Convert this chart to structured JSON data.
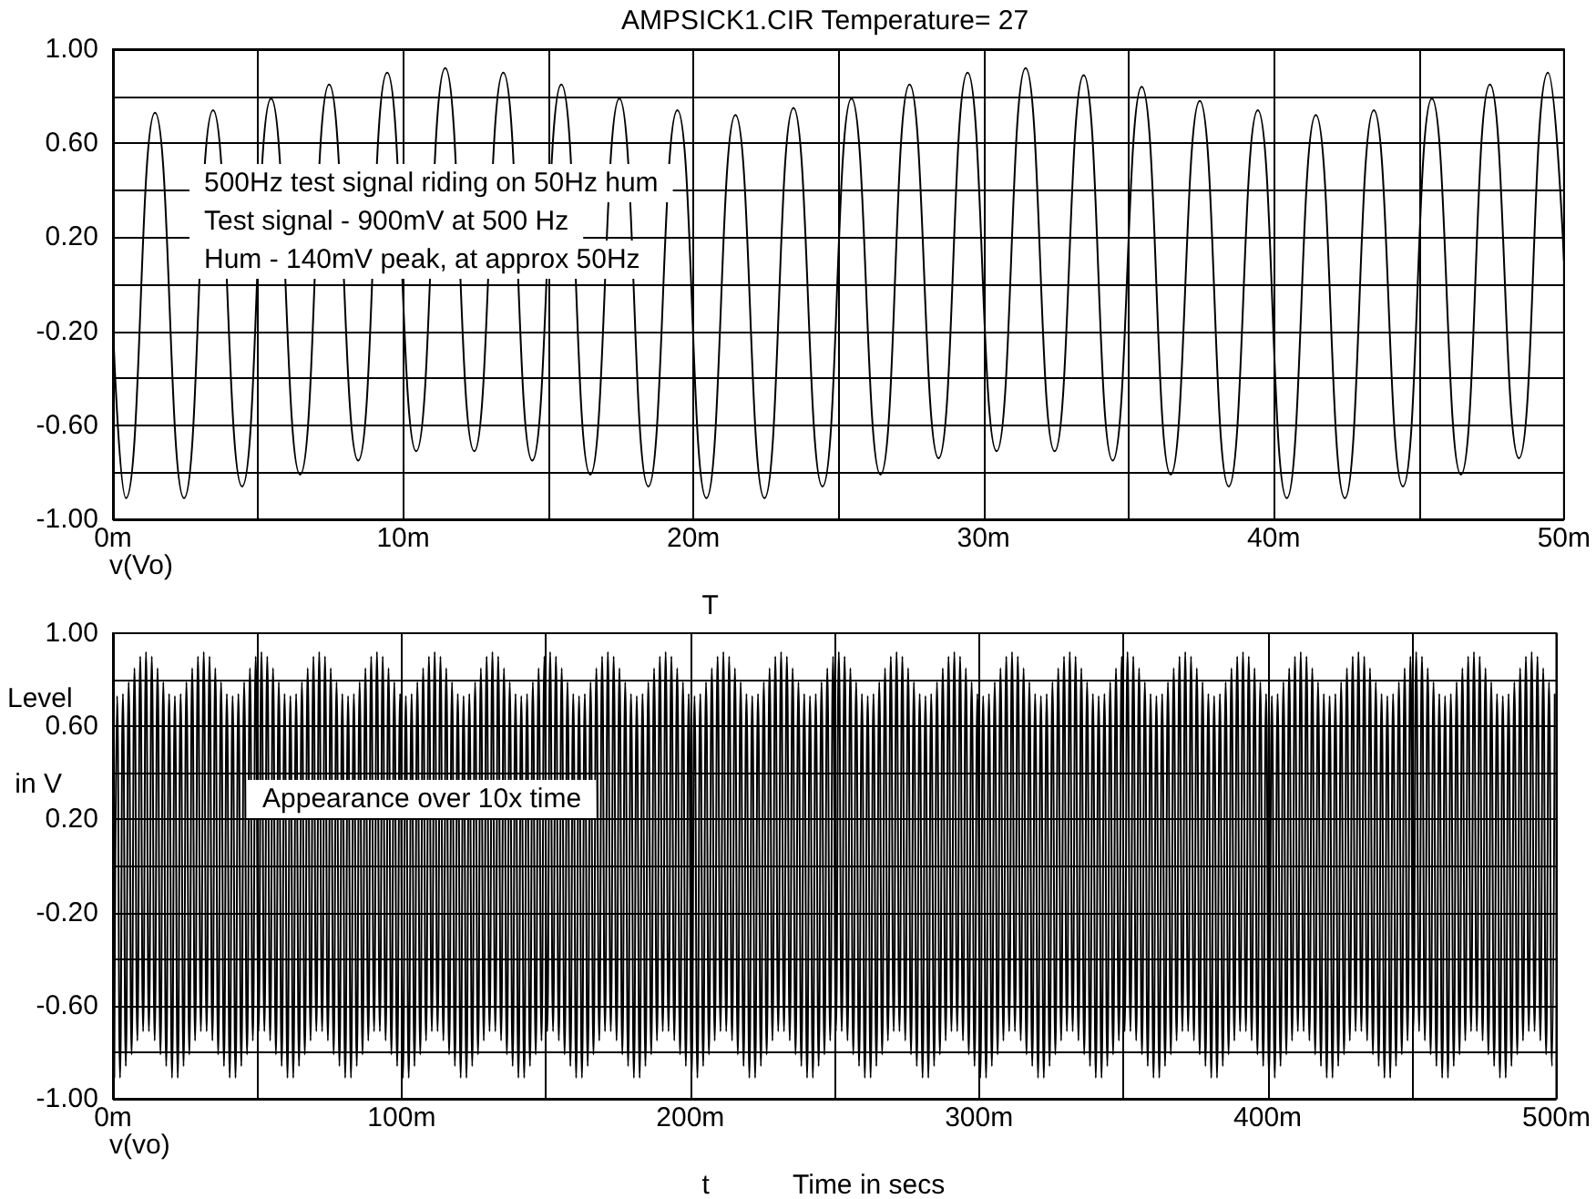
{
  "chart_data": [
    {
      "type": "line",
      "title": "AMPSICK1.CIR Temperature= 27",
      "xlabel": "T",
      "annotations": [
        "500Hz test signal riding on 50Hz hum",
        "Test signal - 900mV at 500 Hz",
        "Hum - 140mV peak, at approx 50Hz"
      ],
      "grid": true,
      "xlim": [
        0,
        50
      ],
      "xticks": [
        {
          "value": 0,
          "label": "0m"
        },
        {
          "value": 5,
          "label": null
        },
        {
          "value": 10,
          "label": "10m"
        },
        {
          "value": 15,
          "label": null
        },
        {
          "value": 20,
          "label": "20m"
        },
        {
          "value": 25,
          "label": null
        },
        {
          "value": 30,
          "label": "30m"
        },
        {
          "value": 35,
          "label": null
        },
        {
          "value": 40,
          "label": "40m"
        },
        {
          "value": 45,
          "label": null
        },
        {
          "value": 50,
          "label": "50m"
        }
      ],
      "ylim": [
        -1,
        1
      ],
      "yticks": [
        {
          "value": -1,
          "label": "-1.00"
        },
        {
          "value": -0.8,
          "label": null
        },
        {
          "value": -0.6,
          "label": "-0.60"
        },
        {
          "value": -0.4,
          "label": null
        },
        {
          "value": -0.2,
          "label": "-0.20"
        },
        {
          "value": 0,
          "label": null
        },
        {
          "value": 0.2,
          "label": "0.20"
        },
        {
          "value": 0.4,
          "label": null
        },
        {
          "value": 0.6,
          "label": "0.60"
        },
        {
          "value": 0.8,
          "label": null
        },
        {
          "value": 1,
          "label": "1.00"
        }
      ],
      "series": [
        {
          "name": "v(Vo)",
          "color": "#000000",
          "x": [
            0,
            0.45,
            1.45,
            2.45,
            3.45,
            4.45,
            5.45,
            6.45,
            7.45,
            8.45,
            9.45,
            10.45,
            11.45,
            12.45,
            13.45,
            14.45,
            15.45,
            16.45,
            17.45,
            18.45,
            19.45,
            20.45,
            21.45,
            22.45,
            23.45,
            24.45,
            25.45,
            26.45,
            27.45,
            28.45,
            29.45,
            30.45,
            31.45,
            32.45,
            33.45,
            34.45,
            35.45,
            36.45,
            37.45,
            38.45,
            39.45,
            40.45,
            41.45,
            42.45,
            43.45,
            44.45,
            45.45,
            46.45,
            47.45,
            48.45,
            49.45,
            50
          ],
          "values": [
            -0.18,
            -0.91,
            0.73,
            -0.91,
            0.74,
            -0.86,
            0.79,
            -0.81,
            0.85,
            -0.75,
            0.9,
            -0.71,
            0.92,
            -0.71,
            0.9,
            -0.75,
            0.85,
            -0.81,
            0.79,
            -0.86,
            0.74,
            -0.91,
            0.72,
            -0.91,
            0.75,
            -0.86,
            0.79,
            -0.81,
            0.85,
            -0.74,
            0.9,
            -0.71,
            0.92,
            -0.71,
            0.89,
            -0.75,
            0.84,
            -0.81,
            0.78,
            -0.86,
            0.74,
            -0.91,
            0.72,
            -0.91,
            0.74,
            -0.86,
            0.79,
            -0.81,
            0.85,
            -0.74,
            0.9,
            0.1
          ]
        }
      ]
    },
    {
      "type": "line",
      "xlabel": "t",
      "ylabel": "Level in V",
      "annotations": [
        "Appearance over 10x time",
        "Time in secs"
      ],
      "grid": true,
      "xlim": [
        0,
        500
      ],
      "xticks": [
        {
          "value": 0,
          "label": "0m"
        },
        {
          "value": 50,
          "label": null
        },
        {
          "value": 100,
          "label": "100m"
        },
        {
          "value": 150,
          "label": null
        },
        {
          "value": 200,
          "label": "200m"
        },
        {
          "value": 250,
          "label": null
        },
        {
          "value": 300,
          "label": "300m"
        },
        {
          "value": 350,
          "label": null
        },
        {
          "value": 400,
          "label": "400m"
        },
        {
          "value": 450,
          "label": null
        },
        {
          "value": 500,
          "label": "500m"
        }
      ],
      "ylim": [
        -1,
        1
      ],
      "yticks": [
        {
          "value": -1,
          "label": "-1.00"
        },
        {
          "value": -0.8,
          "label": null
        },
        {
          "value": -0.6,
          "label": "-0.60"
        },
        {
          "value": -0.4,
          "label": null
        },
        {
          "value": -0.2,
          "label": "-0.20"
        },
        {
          "value": 0,
          "label": null
        },
        {
          "value": 0.2,
          "label": "0.20"
        },
        {
          "value": 0.4,
          "label": null
        },
        {
          "value": 0.6,
          "label": "0.60"
        },
        {
          "value": 0.8,
          "label": null
        },
        {
          "value": 1,
          "label": "1.00"
        }
      ],
      "series": [
        {
          "name": "v(vo)",
          "color": "#000000",
          "x": [
            0.45,
            1.45,
            2.45,
            3.45,
            4.45,
            5.45,
            6.45,
            7.45,
            8.45,
            9.45,
            10.45,
            11.45,
            12.45,
            13.45,
            14.45,
            15.45,
            16.45,
            17.45,
            18.45,
            19.45,
            20.45,
            21.45,
            22.45,
            23.45,
            24.45,
            25.45,
            26.45,
            27.45,
            28.45,
            29.45,
            30.45,
            31.45,
            32.45,
            33.45,
            34.45,
            35.45,
            36.45,
            37.45,
            38.45,
            39.45,
            40.45,
            41.45,
            42.45,
            43.45,
            44.45,
            45.45,
            46.45,
            47.45,
            48.45,
            49.45,
            50.45,
            51.45,
            52.45,
            53.45,
            54.45,
            55.45,
            56.45,
            57.45,
            58.45,
            59.45,
            60.45,
            61.45,
            62.45,
            63.45,
            64.45,
            65.45,
            66.45,
            67.45,
            68.45,
            69.45,
            70.45,
            71.45,
            72.45,
            73.45,
            74.45,
            75.45,
            76.45,
            77.45,
            78.45,
            79.45,
            80.45,
            81.45,
            82.45,
            83.45,
            84.45,
            85.45,
            86.45,
            87.45,
            88.45,
            89.45,
            90.45,
            91.45,
            92.45,
            93.45,
            94.45,
            95.45,
            96.45,
            97.45,
            98.45,
            99.45,
            100.45,
            101.45,
            102.45,
            103.45,
            104.45,
            105.45,
            106.45,
            107.45,
            108.45,
            109.45,
            110.45,
            111.45,
            112.45,
            113.45,
            114.45,
            115.45,
            116.45,
            117.45,
            118.45,
            119.45,
            120.45,
            121.45,
            122.45,
            123.45,
            124.45,
            125.45,
            126.45,
            127.45,
            128.45,
            129.45,
            130.45,
            131.45,
            132.45,
            133.45,
            134.45,
            135.45,
            136.45,
            137.45,
            138.45,
            139.45,
            140.45,
            141.45,
            142.45,
            143.45,
            144.45,
            145.45,
            146.45,
            147.45,
            148.45,
            149.45,
            150.45,
            151.45,
            152.45,
            153.45,
            154.45,
            155.45,
            156.45,
            157.45,
            158.45,
            159.45,
            160.45,
            161.45,
            162.45,
            163.45,
            164.45,
            165.45,
            166.45,
            167.45,
            168.45,
            169.45,
            170.45,
            171.45,
            172.45,
            173.45,
            174.45,
            175.45,
            176.45,
            177.45,
            178.45,
            179.45,
            180.45,
            181.45,
            182.45,
            183.45,
            184.45,
            185.45,
            186.45,
            187.45,
            188.45,
            189.45,
            190.45,
            191.45,
            192.45,
            193.45,
            194.45,
            195.45,
            196.45,
            197.45,
            198.45,
            199.45,
            200.45,
            201.45,
            202.45,
            203.45,
            204.45,
            205.45,
            206.45,
            207.45,
            208.45,
            209.45,
            210.45,
            211.45,
            212.45,
            213.45,
            214.45,
            215.45,
            216.45,
            217.45,
            218.45,
            219.45,
            220.45,
            221.45,
            222.45,
            223.45,
            224.45,
            225.45,
            226.45,
            227.45,
            228.45,
            229.45,
            230.45,
            231.45,
            232.45,
            233.45,
            234.45,
            235.45,
            236.45,
            237.45,
            238.45,
            239.45,
            240.45,
            241.45,
            242.45,
            243.45,
            244.45,
            245.45,
            246.45,
            247.45,
            248.45,
            249.45,
            250.45,
            251.45,
            252.45,
            253.45,
            254.45,
            255.45,
            256.45,
            257.45,
            258.45,
            259.45,
            260.45,
            261.45,
            262.45,
            263.45,
            264.45,
            265.45,
            266.45,
            267.45,
            268.45,
            269.45,
            270.45,
            271.45,
            272.45,
            273.45,
            274.45,
            275.45,
            276.45,
            277.45,
            278.45,
            279.45,
            280.45,
            281.45,
            282.45,
            283.45,
            284.45,
            285.45,
            286.45,
            287.45,
            288.45,
            289.45,
            290.45,
            291.45,
            292.45,
            293.45,
            294.45,
            295.45,
            296.45,
            297.45,
            298.45,
            299.45,
            300.45,
            301.45,
            302.45,
            303.45,
            304.45,
            305.45,
            306.45,
            307.45,
            308.45,
            309.45,
            310.45,
            311.45,
            312.45,
            313.45,
            314.45,
            315.45,
            316.45,
            317.45,
            318.45,
            319.45,
            320.45,
            321.45,
            322.45,
            323.45,
            324.45,
            325.45,
            326.45,
            327.45,
            328.45,
            329.45,
            330.45,
            331.45,
            332.45,
            333.45,
            334.45,
            335.45,
            336.45,
            337.45,
            338.45,
            339.45,
            340.45,
            341.45,
            342.45,
            343.45,
            344.45,
            345.45,
            346.45,
            347.45,
            348.45,
            349.45,
            350.45,
            351.45,
            352.45,
            353.45,
            354.45,
            355.45,
            356.45,
            357.45,
            358.45,
            359.45,
            360.45,
            361.45,
            362.45,
            363.45,
            364.45,
            365.45,
            366.45,
            367.45,
            368.45,
            369.45,
            370.45,
            371.45,
            372.45,
            373.45,
            374.45,
            375.45,
            376.45,
            377.45,
            378.45,
            379.45,
            380.45,
            381.45,
            382.45,
            383.45,
            384.45,
            385.45,
            386.45,
            387.45,
            388.45,
            389.45,
            390.45,
            391.45,
            392.45,
            393.45,
            394.45,
            395.45,
            396.45,
            397.45,
            398.45,
            399.45,
            400.45,
            401.45,
            402.45,
            403.45,
            404.45,
            405.45,
            406.45,
            407.45,
            408.45,
            409.45,
            410.45,
            411.45,
            412.45,
            413.45,
            414.45,
            415.45,
            416.45,
            417.45,
            418.45,
            419.45,
            420.45,
            421.45,
            422.45,
            423.45,
            424.45,
            425.45,
            426.45,
            427.45,
            428.45,
            429.45,
            430.45,
            431.45,
            432.45,
            433.45,
            434.45,
            435.45,
            436.45,
            437.45,
            438.45,
            439.45,
            440.45,
            441.45,
            442.45,
            443.45,
            444.45,
            445.45,
            446.45,
            447.45,
            448.45,
            449.45,
            450.45,
            451.45,
            452.45,
            453.45,
            454.45,
            455.45,
            456.45,
            457.45,
            458.45,
            459.45,
            460.45,
            461.45,
            462.45,
            463.45,
            464.45,
            465.45,
            466.45,
            467.45,
            468.45,
            469.45,
            470.45,
            471.45,
            472.45,
            473.45,
            474.45,
            475.45,
            476.45,
            477.45,
            478.45,
            479.45,
            480.45,
            481.45,
            482.45,
            483.45,
            484.45,
            485.45,
            486.45,
            487.45,
            488.45,
            489.45,
            490.45,
            491.45,
            492.45,
            493.45,
            494.45,
            495.45,
            496.45,
            497.45,
            498.45,
            499.45
          ],
          "values": [
            -0.91,
            0.73,
            -0.91,
            0.74,
            -0.86,
            0.79,
            -0.81,
            0.85,
            -0.75,
            0.9,
            -0.71,
            0.92,
            -0.71,
            0.9,
            -0.75,
            0.85,
            -0.81,
            0.79,
            -0.86,
            0.74,
            -0.91,
            0.73,
            -0.91,
            0.74,
            -0.86,
            0.79,
            -0.81,
            0.85,
            -0.75,
            0.9,
            -0.71,
            0.92,
            -0.71,
            0.9,
            -0.75,
            0.85,
            -0.81,
            0.79,
            -0.86,
            0.74,
            -0.91,
            0.73,
            -0.91,
            0.74,
            -0.86,
            0.79,
            -0.81,
            0.85,
            -0.75,
            0.9,
            -0.71,
            0.92,
            -0.71,
            0.9,
            -0.75,
            0.85,
            -0.81,
            0.79,
            -0.86,
            0.74,
            -0.91,
            0.73,
            -0.91,
            0.74,
            -0.86,
            0.79,
            -0.81,
            0.85,
            -0.75,
            0.9,
            -0.71,
            0.92,
            -0.71,
            0.9,
            -0.75,
            0.85,
            -0.81,
            0.79,
            -0.86,
            0.74,
            -0.91,
            0.73,
            -0.91,
            0.74,
            -0.86,
            0.79,
            -0.81,
            0.85,
            -0.75,
            0.9,
            -0.71,
            0.92,
            -0.71,
            0.9,
            -0.75,
            0.85,
            -0.81,
            0.79,
            -0.86,
            0.74,
            -0.91,
            0.73,
            -0.91,
            0.74,
            -0.86,
            0.79,
            -0.81,
            0.85,
            -0.75,
            0.9,
            -0.71,
            0.92,
            -0.71,
            0.9,
            -0.75,
            0.85,
            -0.81,
            0.79,
            -0.86,
            0.74,
            -0.91,
            0.73,
            -0.91,
            0.74,
            -0.86,
            0.79,
            -0.81,
            0.85,
            -0.75,
            0.9,
            -0.71,
            0.92,
            -0.71,
            0.9,
            -0.75,
            0.85,
            -0.81,
            0.79,
            -0.86,
            0.74,
            -0.91,
            0.73,
            -0.91,
            0.74,
            -0.86,
            0.79,
            -0.81,
            0.85,
            -0.75,
            0.9,
            -0.71,
            0.92,
            -0.71,
            0.9,
            -0.75,
            0.85,
            -0.81,
            0.79,
            -0.86,
            0.74,
            -0.91,
            0.73,
            -0.91,
            0.74,
            -0.86,
            0.79,
            -0.81,
            0.85,
            -0.75,
            0.9,
            -0.71,
            0.92,
            -0.71,
            0.9,
            -0.75,
            0.85,
            -0.81,
            0.79,
            -0.86,
            0.74,
            -0.91,
            0.73,
            -0.91,
            0.74,
            -0.86,
            0.79,
            -0.81,
            0.85,
            -0.75,
            0.9,
            -0.71,
            0.92,
            -0.71,
            0.9,
            -0.75,
            0.85,
            -0.81,
            0.79,
            -0.86,
            0.74,
            -0.91,
            0.73,
            -0.91,
            0.74,
            -0.86,
            0.79,
            -0.81,
            0.85,
            -0.75,
            0.9,
            -0.71,
            0.92,
            -0.71,
            0.9,
            -0.75,
            0.85,
            -0.81,
            0.79,
            -0.86,
            0.74,
            -0.91,
            0.73,
            -0.91,
            0.74,
            -0.86,
            0.79,
            -0.81,
            0.85,
            -0.75,
            0.9,
            -0.71,
            0.92,
            -0.71,
            0.9,
            -0.75,
            0.85,
            -0.81,
            0.79,
            -0.86,
            0.74,
            -0.91,
            0.73,
            -0.91,
            0.74,
            -0.86,
            0.79,
            -0.81,
            0.85,
            -0.75,
            0.9,
            -0.71,
            0.92,
            -0.71,
            0.9,
            -0.75,
            0.85,
            -0.81,
            0.79,
            -0.86,
            0.74,
            -0.91,
            0.73,
            -0.91,
            0.74,
            -0.86,
            0.79,
            -0.81,
            0.85,
            -0.75,
            0.9,
            -0.71,
            0.92,
            -0.71,
            0.9,
            -0.75,
            0.85,
            -0.81,
            0.79,
            -0.86,
            0.74,
            -0.91,
            0.73,
            -0.91,
            0.74,
            -0.86,
            0.79,
            -0.81,
            0.85,
            -0.75,
            0.9,
            -0.71,
            0.92,
            -0.71,
            0.9,
            -0.75,
            0.85,
            -0.81,
            0.79,
            -0.86,
            0.74,
            -0.91,
            0.73,
            -0.91,
            0.74,
            -0.86,
            0.79,
            -0.81,
            0.85,
            -0.75,
            0.9,
            -0.71,
            0.92,
            -0.71,
            0.9,
            -0.75,
            0.85,
            -0.81,
            0.79,
            -0.86,
            0.74,
            -0.91,
            0.73,
            -0.91,
            0.74,
            -0.86,
            0.79,
            -0.81,
            0.85,
            -0.75,
            0.9,
            -0.71,
            0.92,
            -0.71,
            0.9,
            -0.75,
            0.85,
            -0.81,
            0.79,
            -0.86,
            0.74,
            -0.91,
            0.73,
            -0.91,
            0.74,
            -0.86,
            0.79,
            -0.81,
            0.85,
            -0.75,
            0.9,
            -0.71,
            0.92,
            -0.71,
            0.9,
            -0.75,
            0.85,
            -0.81,
            0.79,
            -0.86,
            0.74,
            -0.91,
            0.73,
            -0.91,
            0.74,
            -0.86,
            0.79,
            -0.81,
            0.85,
            -0.75,
            0.9,
            -0.71,
            0.92,
            -0.71,
            0.9,
            -0.75,
            0.85,
            -0.81,
            0.79,
            -0.86,
            0.74,
            -0.91,
            0.73,
            -0.91,
            0.74,
            -0.86,
            0.79,
            -0.81,
            0.85,
            -0.75,
            0.9,
            -0.71,
            0.92,
            -0.71,
            0.9,
            -0.75,
            0.85,
            -0.81,
            0.79,
            -0.86,
            0.74,
            -0.91,
            0.73,
            -0.91,
            0.74,
            -0.86,
            0.79,
            -0.81,
            0.85,
            -0.75,
            0.9,
            -0.71,
            0.92,
            -0.71,
            0.9,
            -0.75,
            0.85,
            -0.81,
            0.79,
            -0.86,
            0.74,
            -0.91,
            0.73,
            -0.91,
            0.74,
            -0.86,
            0.79,
            -0.81,
            0.85,
            -0.75,
            0.9,
            -0.71,
            0.92,
            -0.71,
            0.9,
            -0.75,
            0.85,
            -0.81,
            0.79,
            -0.86,
            0.74,
            -0.91,
            0.73,
            -0.91,
            0.74,
            -0.86,
            0.79,
            -0.81,
            0.85,
            -0.75,
            0.9,
            -0.71,
            0.92,
            -0.71,
            0.9,
            -0.75,
            0.85,
            -0.81,
            0.79,
            -0.86,
            0.74,
            -0.91,
            0.73,
            -0.91,
            0.74,
            -0.86,
            0.79,
            -0.81,
            0.85,
            -0.75,
            0.9,
            -0.71,
            0.92,
            -0.71,
            0.9,
            -0.75,
            0.85,
            -0.81,
            0.79,
            -0.86,
            0.74,
            -0.91,
            0.73,
            -0.91,
            0.74,
            -0.86,
            0.79,
            -0.81,
            0.85,
            -0.75,
            0.9,
            -0.71,
            0.92,
            -0.71,
            0.9,
            -0.75,
            0.85,
            -0.81,
            0.79,
            -0.86,
            0.74
          ]
        }
      ]
    }
  ]
}
